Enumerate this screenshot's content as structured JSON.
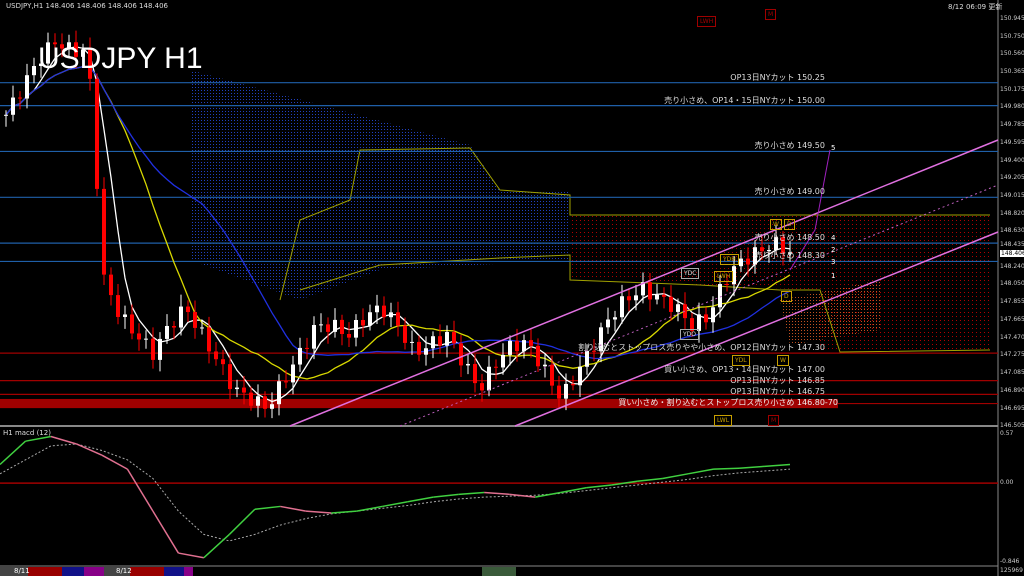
{
  "header": {
    "symbol_line": "USDJPY,H1  148.406 148.406 148.406 148.406",
    "big_title": "USDJPY H1",
    "updated": "8/12 06:09 更新"
  },
  "colors": {
    "bull": "#ffffff",
    "bear": "#ff0000",
    "level_blue": "#1f5fa8",
    "level_red": "#a00000",
    "channel": "#e070e0",
    "ma_white": "#ffffff",
    "ma_yellow": "#d8d800",
    "ma_blue": "#2030e0",
    "macd_up": "#40d040",
    "macd_down": "#e07090"
  },
  "levels": [
    {
      "price": 150.25,
      "color": "blue",
      "label": "OP13日NYカット 150.25"
    },
    {
      "price": 150.0,
      "color": "blue",
      "label": "売り小さめ、OP14・15日NYカット 150.00"
    },
    {
      "price": 149.5,
      "color": "blue",
      "label": "売り小さめ 149.50"
    },
    {
      "price": 149.0,
      "color": "blue",
      "label": "売り小さめ 149.00"
    },
    {
      "price": 148.5,
      "color": "blue",
      "label": "売り小さめ 148.50"
    },
    {
      "price": 148.3,
      "color": "blue",
      "label": "売り小さめ 148.30"
    },
    {
      "price": 147.3,
      "color": "red",
      "label": "割り込むとストップロス売りやや小さめ、OP12日NYカット 147.30"
    },
    {
      "price": 147.0,
      "color": "red",
      "label": "買い小さめ、OP13・14日NYカット 147.00"
    },
    {
      "price": 146.85,
      "color": "red",
      "label": "OP13日NYカット 146.85"
    },
    {
      "price": 146.75,
      "color": "red",
      "label": "OP13日NYカット 146.75"
    }
  ],
  "zone": {
    "label": "買い小さめ・割り込むとストップロス売り小さめ 146.80-70",
    "from": 146.8,
    "to": 146.7
  },
  "boxes": [
    {
      "text": "LWH",
      "color": "#a00000"
    },
    {
      "text": "M",
      "color": "#a00000"
    },
    {
      "text": "YDC",
      "color": "#aaaaaa"
    },
    {
      "text": "LWH",
      "color": "#c8a000"
    },
    {
      "text": "YDH",
      "color": "#c8a000"
    },
    {
      "text": "W",
      "color": "#c8a000"
    },
    {
      "text": "D",
      "color": "#c8a000"
    },
    {
      "text": "D",
      "color": "#c8a000"
    },
    {
      "text": "YDO",
      "color": "#aaaaaa"
    },
    {
      "text": "YDL",
      "color": "#c8a000"
    },
    {
      "text": "W",
      "color": "#c8a000"
    },
    {
      "text": "LWL",
      "color": "#c8a000"
    },
    {
      "text": "M",
      "color": "#a00000"
    }
  ],
  "wave_labels": [
    "5",
    "4",
    "3",
    "2",
    "1"
  ],
  "axis": {
    "price_ticks": [
      "150.945",
      "150.750",
      "150.560",
      "150.365",
      "150.175",
      "149.980",
      "149.785",
      "149.595",
      "149.400",
      "149.205",
      "149.015",
      "148.820",
      "148.630",
      "148.435",
      "148.240",
      "148.050",
      "147.855",
      "147.665",
      "147.470",
      "147.275",
      "147.085",
      "146.890",
      "146.695",
      "146.505"
    ],
    "current": "148.406",
    "macd_ticks": [
      "0.57",
      "0.00",
      "-0.846"
    ],
    "bottom_right": "125969"
  },
  "macd": {
    "label": "H1  macd (12)"
  },
  "dates": [
    "8/11",
    "8/12"
  ],
  "chart_data": {
    "type": "candlestick",
    "symbol": "USDJPY",
    "timeframe": "H1",
    "ylim": [
      146.505,
      150.945
    ],
    "closes": [
      149.9,
      150.2,
      150.5,
      150.7,
      150.6,
      150.6,
      148.1,
      147.7,
      147.5,
      147.3,
      147.6,
      147.8,
      147.5,
      147.2,
      146.9,
      146.8,
      146.7,
      147.0,
      147.3,
      147.6,
      147.6,
      147.5,
      147.7,
      147.8,
      147.6,
      147.3,
      147.4,
      147.5,
      147.2,
      146.9,
      147.2,
      147.4,
      147.4,
      147.1,
      146.8,
      147.1,
      147.4,
      147.7,
      147.9,
      148.0,
      147.9,
      147.8,
      147.6,
      147.7,
      148.1,
      148.3,
      148.4,
      148.5,
      148.4
    ],
    "macd_main": [
      0.2,
      0.45,
      0.5,
      0.42,
      0.3,
      0.15,
      -0.3,
      -0.75,
      -0.8,
      -0.55,
      -0.28,
      -0.25,
      -0.3,
      -0.32,
      -0.3,
      -0.25,
      -0.2,
      -0.15,
      -0.12,
      -0.1,
      -0.12,
      -0.15,
      -0.1,
      -0.05,
      -0.02,
      0.02,
      0.05,
      0.1,
      0.15,
      0.16,
      0.18,
      0.2
    ],
    "macd_signal": [
      0.1,
      0.25,
      0.4,
      0.42,
      0.35,
      0.25,
      0.05,
      -0.3,
      -0.55,
      -0.62,
      -0.55,
      -0.45,
      -0.38,
      -0.33,
      -0.3,
      -0.27,
      -0.24,
      -0.2,
      -0.17,
      -0.15,
      -0.14,
      -0.13,
      -0.11,
      -0.08,
      -0.05,
      -0.02,
      0.01,
      0.04,
      0.08,
      0.11,
      0.13,
      0.15
    ],
    "macd_ylim": [
      -0.846,
      0.57
    ]
  }
}
